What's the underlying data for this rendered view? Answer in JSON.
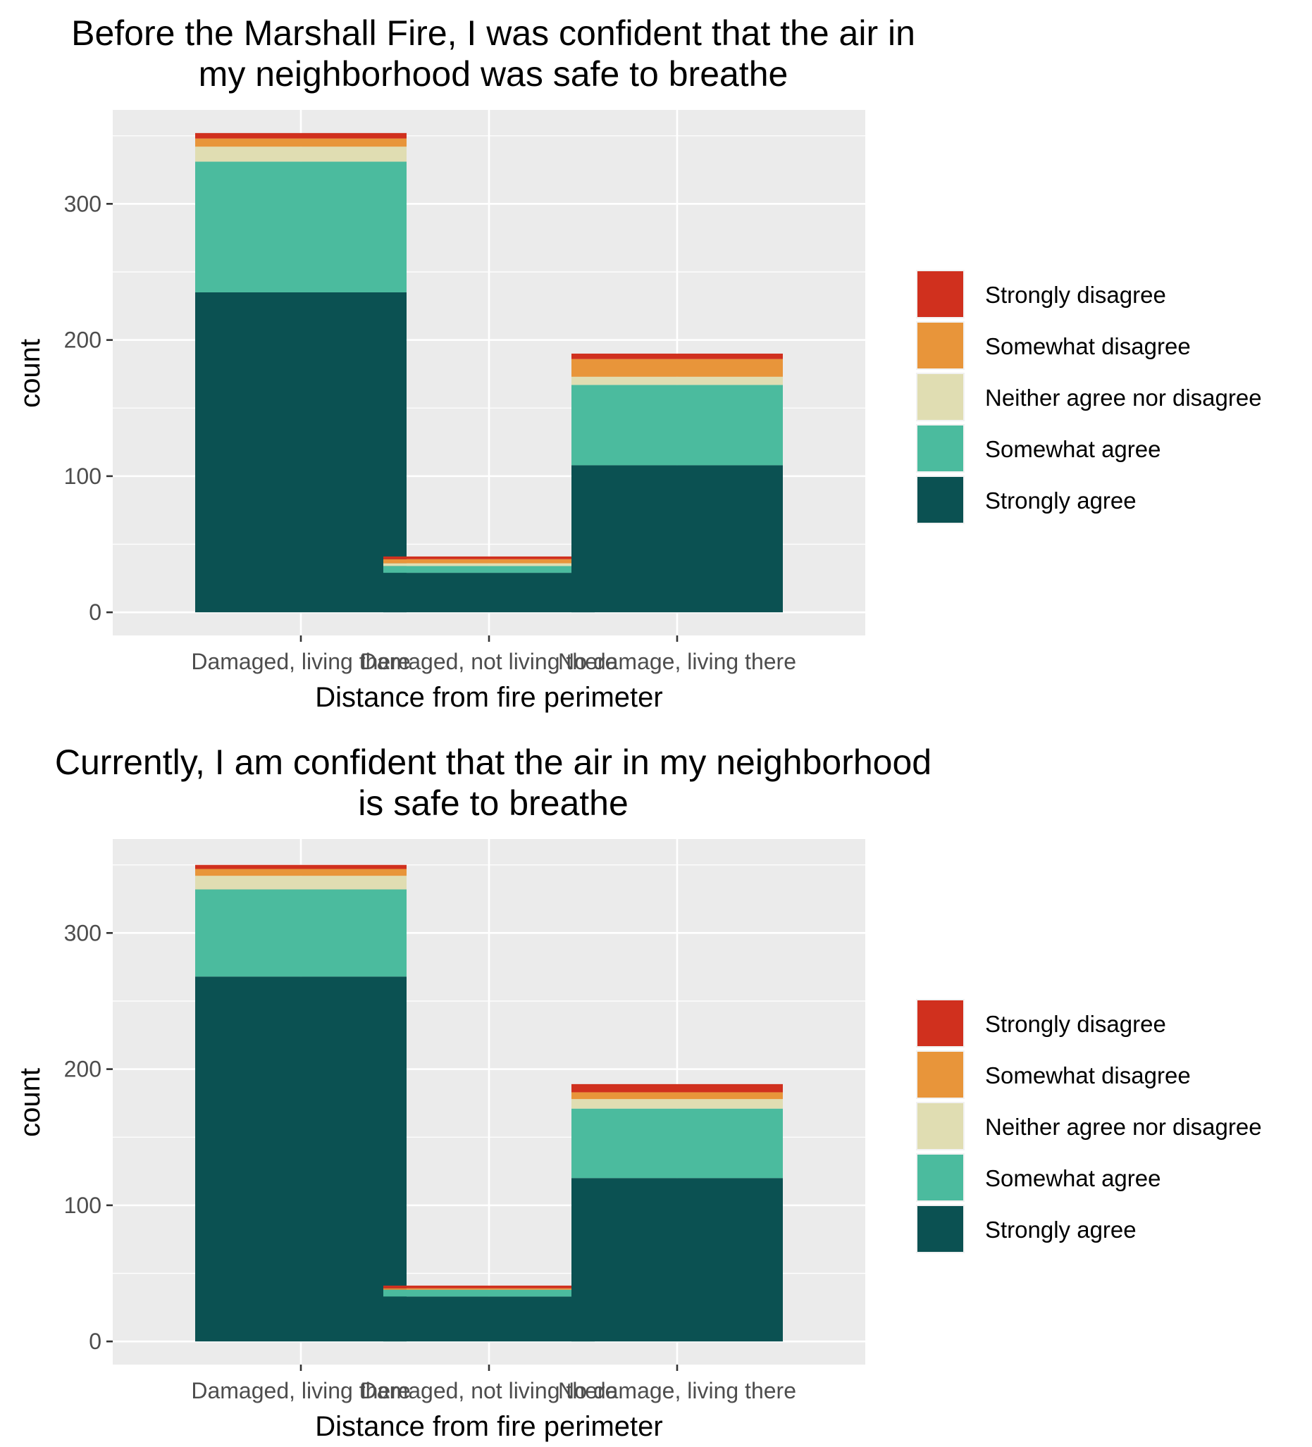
{
  "legend": {
    "items": [
      "Strongly disagree",
      "Somewhat disagree",
      "Neither agree nor disagree",
      "Somewhat agree",
      "Strongly agree"
    ],
    "colors": [
      "#D0301E",
      "#E8953A",
      "#E0DDB2",
      "#4BBB9E",
      "#0B5152"
    ]
  },
  "chart_data": [
    {
      "type": "bar",
      "stacked": true,
      "title_lines": [
        "Before the Marshall Fire, I was confident that the air in",
        "my neighborhood was safe to breathe"
      ],
      "xlabel": "Distance from fire perimeter",
      "ylabel": "count",
      "categories": [
        "Damaged, living there",
        "Damaged, not living there",
        "No damage, living there"
      ],
      "yticks": [
        0,
        100,
        200,
        300
      ],
      "ylim": [
        -17,
        369
      ],
      "grid": true,
      "legend_position": "right",
      "series": [
        {
          "name": "Strongly agree",
          "values": [
            235,
            29,
            108
          ]
        },
        {
          "name": "Somewhat agree",
          "values": [
            96,
            5,
            59
          ]
        },
        {
          "name": "Neither agree nor disagree",
          "values": [
            11,
            2,
            6
          ]
        },
        {
          "name": "Somewhat disagree",
          "values": [
            6,
            3,
            13
          ]
        },
        {
          "name": "Strongly disagree",
          "values": [
            4,
            2,
            4
          ]
        }
      ]
    },
    {
      "type": "bar",
      "stacked": true,
      "title_lines": [
        "Currently, I am confident that the air in my neighborhood",
        "is safe to breathe"
      ],
      "xlabel": "Distance from fire perimeter",
      "ylabel": "count",
      "categories": [
        "Damaged, living there",
        "Damaged, not living there",
        "No damage, living there"
      ],
      "yticks": [
        0,
        100,
        200,
        300
      ],
      "ylim": [
        -17,
        369
      ],
      "grid": true,
      "legend_position": "right",
      "series": [
        {
          "name": "Strongly agree",
          "values": [
            268,
            33,
            120
          ]
        },
        {
          "name": "Somewhat agree",
          "values": [
            64,
            5,
            51
          ]
        },
        {
          "name": "Neither agree nor disagree",
          "values": [
            10,
            0,
            7
          ]
        },
        {
          "name": "Somewhat disagree",
          "values": [
            5,
            1,
            5
          ]
        },
        {
          "name": "Strongly disagree",
          "values": [
            3,
            2,
            6
          ]
        }
      ]
    }
  ]
}
